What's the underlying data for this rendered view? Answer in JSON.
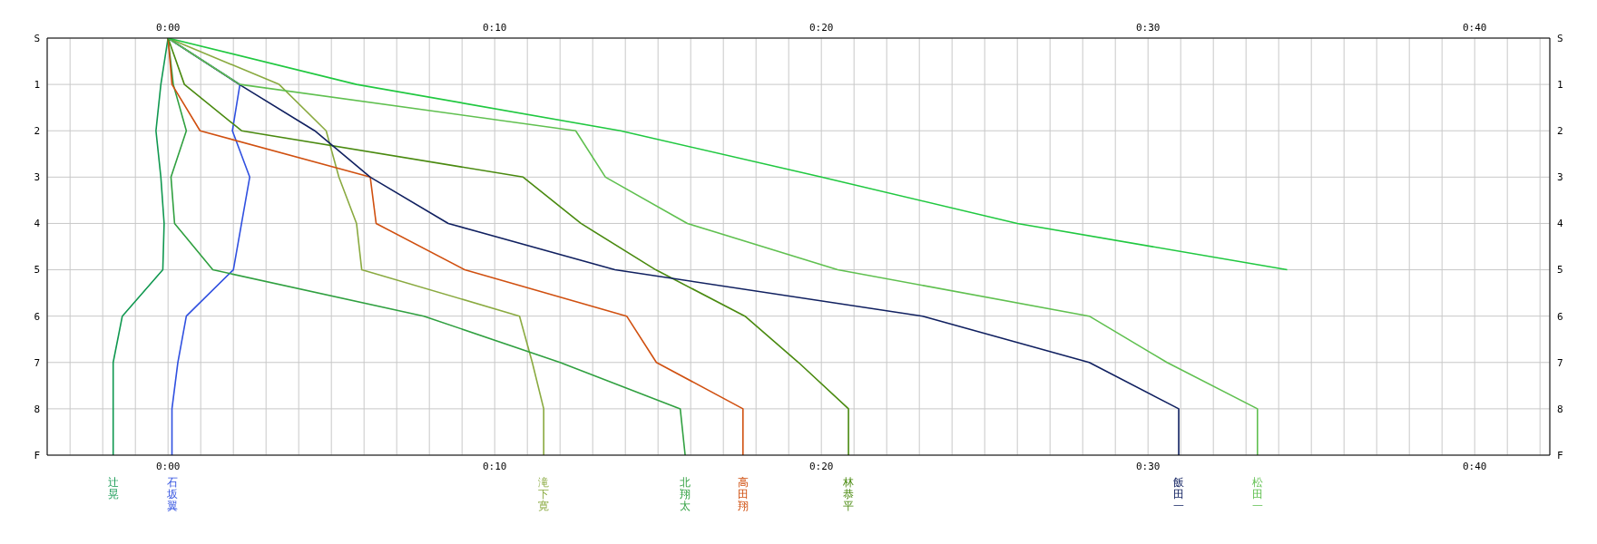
{
  "chart_data": {
    "type": "line",
    "grid": true,
    "orientation": "horizontal",
    "categories": [
      "S",
      "1",
      "2",
      "3",
      "4",
      "5",
      "6",
      "7",
      "8",
      "F"
    ],
    "xlim": [
      -3.7,
      42.3
    ],
    "xticks": [
      {
        "value": -3,
        "label": null
      },
      {
        "value": -2,
        "label": null
      },
      {
        "value": -1,
        "label": null
      },
      {
        "value": 0,
        "label": "0:00"
      },
      {
        "value": 1,
        "label": null
      },
      {
        "value": 2,
        "label": null
      },
      {
        "value": 3,
        "label": null
      },
      {
        "value": 4,
        "label": null
      },
      {
        "value": 5,
        "label": null
      },
      {
        "value": 6,
        "label": null
      },
      {
        "value": 7,
        "label": null
      },
      {
        "value": 8,
        "label": null
      },
      {
        "value": 9,
        "label": null
      },
      {
        "value": 10,
        "label": "0:10"
      },
      {
        "value": 11,
        "label": null
      },
      {
        "value": 12,
        "label": null
      },
      {
        "value": 13,
        "label": null
      },
      {
        "value": 14,
        "label": null
      },
      {
        "value": 15,
        "label": null
      },
      {
        "value": 16,
        "label": null
      },
      {
        "value": 17,
        "label": null
      },
      {
        "value": 18,
        "label": null
      },
      {
        "value": 19,
        "label": null
      },
      {
        "value": 20,
        "label": "0:20"
      },
      {
        "value": 21,
        "label": null
      },
      {
        "value": 22,
        "label": null
      },
      {
        "value": 23,
        "label": null
      },
      {
        "value": 24,
        "label": null
      },
      {
        "value": 25,
        "label": null
      },
      {
        "value": 26,
        "label": null
      },
      {
        "value": 27,
        "label": null
      },
      {
        "value": 28,
        "label": null
      },
      {
        "value": 29,
        "label": null
      },
      {
        "value": 30,
        "label": "0:30"
      },
      {
        "value": 31,
        "label": null
      },
      {
        "value": 32,
        "label": null
      },
      {
        "value": 33,
        "label": null
      },
      {
        "value": 34,
        "label": null
      },
      {
        "value": 35,
        "label": null
      },
      {
        "value": 36,
        "label": null
      },
      {
        "value": 37,
        "label": null
      },
      {
        "value": 38,
        "label": null
      },
      {
        "value": 39,
        "label": null
      },
      {
        "value": 40,
        "label": "0:40"
      },
      {
        "value": 41,
        "label": null
      },
      {
        "value": 42,
        "label": null
      }
    ],
    "x2lim": [
      -3.7,
      42.3
    ],
    "x2ticks": [
      {
        "value": 0,
        "label": "0:00"
      },
      {
        "value": 10,
        "label": "0:10"
      },
      {
        "value": 20,
        "label": "0:20"
      },
      {
        "value": 30,
        "label": "0:30"
      },
      {
        "value": 40,
        "label": "0:40"
      }
    ],
    "series": [
      {
        "name": "辻晃",
        "color": "#109850",
        "values": [
          0,
          -0.22,
          -0.37,
          -0.22,
          -0.12,
          -0.16,
          -1.4,
          -1.68,
          -1.68,
          -1.68
        ]
      },
      {
        "name": "石坂翼",
        "color": "#3050e0",
        "values": [
          0,
          2.2,
          1.97,
          2.5,
          2.25,
          2.0,
          0.56,
          0.3,
          0.12,
          0.12
        ]
      },
      {
        "name": "滝下寛",
        "color": "#8aaa40",
        "values": [
          0,
          3.4,
          4.84,
          5.23,
          5.77,
          5.93,
          10.76,
          11.15,
          11.5,
          11.5
        ]
      },
      {
        "name": "北翔太",
        "color": "#30a040",
        "values": [
          0,
          0.16,
          0.56,
          0.09,
          0.2,
          1.37,
          7.83,
          12.0,
          15.68,
          15.83
        ]
      },
      {
        "name": "高田翔",
        "color": "#d05010",
        "values": [
          0,
          0.12,
          0.98,
          6.19,
          6.37,
          9.08,
          14.04,
          14.95,
          17.6,
          17.6
        ]
      },
      {
        "name": "林恭平",
        "color": "#4a8a10",
        "values": [
          0,
          0.5,
          2.25,
          10.87,
          12.64,
          14.93,
          17.66,
          19.3,
          20.83,
          20.83
        ]
      },
      {
        "name": "飯田一",
        "color": "#102060",
        "values": [
          0,
          2.18,
          4.49,
          6.19,
          8.58,
          13.68,
          23.1,
          28.2,
          30.94,
          30.94
        ]
      },
      {
        "name": "松田一",
        "color": "#60c050",
        "values": [
          0,
          2.2,
          12.48,
          13.39,
          15.9,
          20.5,
          28.2,
          30.58,
          33.35,
          33.35
        ]
      },
      {
        "color": "#20c840",
        "values": [
          0,
          5.77,
          13.85,
          20.0,
          26.0,
          34.26,
          null,
          null,
          null,
          null
        ]
      }
    ]
  }
}
